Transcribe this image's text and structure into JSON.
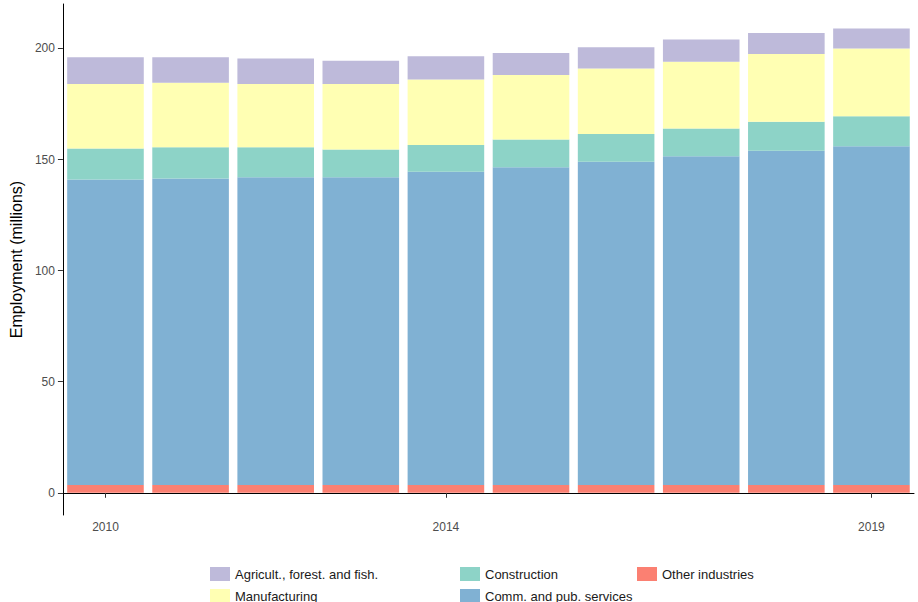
{
  "chart_data": {
    "type": "bar",
    "stacked": true,
    "y_label": "Employment (millions)",
    "categories": [
      "2010",
      null,
      null,
      null,
      "2014",
      null,
      null,
      null,
      null,
      "2019"
    ],
    "ylim": [
      -10,
      220
    ],
    "yticks": [
      0,
      50,
      100,
      150,
      200
    ],
    "grid": false,
    "legend": "bottom",
    "series": [
      {
        "name": "Other industries",
        "color": "#fb8072",
        "values": [
          3.5,
          3.5,
          3.5,
          3.5,
          3.5,
          3.5,
          3.5,
          3.5,
          3.5,
          3.5
        ]
      },
      {
        "name": "Comm. and pub. services",
        "color": "#80b1d3",
        "values": [
          137.5,
          138,
          138.5,
          138.5,
          141,
          143,
          145.5,
          148,
          150.5,
          152.5
        ]
      },
      {
        "name": "Construction",
        "color": "#8dd3c7",
        "values": [
          14,
          14,
          13.5,
          12.5,
          12,
          12.5,
          12.5,
          12.5,
          13,
          13.5
        ]
      },
      {
        "name": "Manufacturing",
        "color": "#ffffb3",
        "values": [
          29,
          29,
          28.5,
          29.5,
          29.5,
          29,
          29.5,
          30,
          30.5,
          30.5
        ]
      },
      {
        "name": "Agricult., forest. and fish.",
        "color": "#bebada",
        "values": [
          12,
          11.5,
          11.5,
          10.5,
          10.5,
          10,
          9.5,
          10,
          9.5,
          9
        ]
      }
    ]
  }
}
